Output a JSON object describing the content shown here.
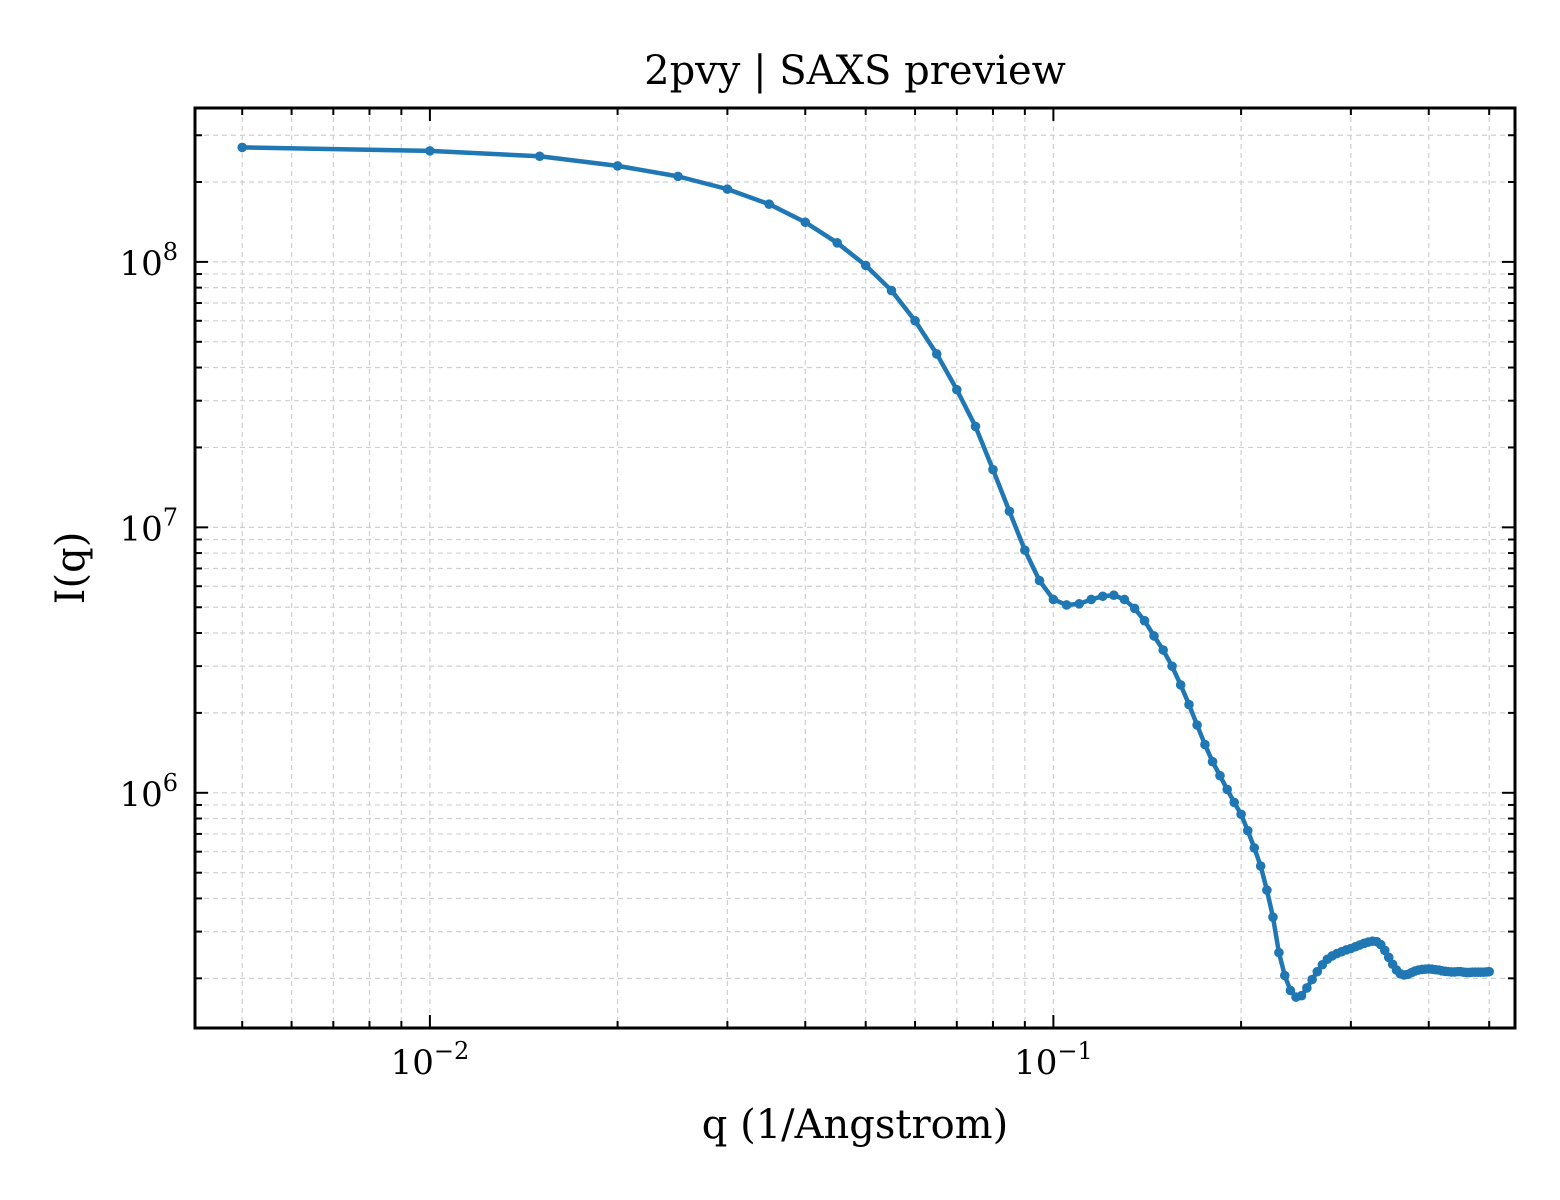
{
  "chart_data": {
    "type": "line",
    "title": "2pvy | SAXS preview",
    "xlabel": "q (1/Angstrom)",
    "ylabel": "I(q)",
    "xscale": "log",
    "yscale": "log",
    "xlim": [
      0.0042,
      0.55
    ],
    "ylim": [
      130000,
      380000000
    ],
    "grid": true,
    "grid_style": "dashed",
    "legend": "none",
    "line_color": "#1f77b4",
    "x_tick_labels": [
      {
        "value": 0.01,
        "base": "10",
        "exp": "−2"
      },
      {
        "value": 0.1,
        "base": "10",
        "exp": "−1"
      }
    ],
    "y_tick_labels": [
      {
        "value": 1000000,
        "base": "10",
        "exp": "6"
      },
      {
        "value": 10000000,
        "base": "10",
        "exp": "7"
      },
      {
        "value": 100000000,
        "base": "10",
        "exp": "8"
      }
    ],
    "series": [
      {
        "marker": "circle",
        "x": [
          0.005,
          0.01,
          0.015,
          0.02,
          0.025,
          0.03,
          0.035,
          0.04,
          0.045,
          0.05,
          0.055,
          0.06,
          0.065,
          0.07,
          0.075,
          0.08,
          0.085,
          0.09,
          0.095,
          0.1,
          0.105,
          0.11,
          0.115,
          0.12,
          0.125,
          0.13,
          0.135,
          0.14,
          0.145,
          0.15,
          0.155,
          0.16,
          0.165,
          0.17,
          0.175,
          0.18,
          0.185,
          0.19,
          0.195,
          0.2,
          0.205,
          0.21,
          0.215,
          0.22,
          0.225,
          0.23,
          0.235,
          0.24,
          0.245,
          0.25,
          0.255,
          0.26,
          0.265,
          0.27,
          0.275,
          0.28,
          0.285,
          0.29,
          0.295,
          0.3,
          0.305,
          0.31,
          0.315,
          0.32,
          0.325,
          0.33,
          0.335,
          0.34,
          0.345,
          0.35,
          0.355,
          0.36,
          0.365,
          0.37,
          0.375,
          0.38,
          0.385,
          0.39,
          0.395,
          0.4,
          0.405,
          0.41,
          0.415,
          0.42,
          0.425,
          0.43,
          0.435,
          0.44,
          0.445,
          0.45,
          0.455,
          0.46,
          0.465,
          0.47,
          0.475,
          0.48,
          0.485,
          0.49,
          0.495,
          0.5
        ],
        "y": [
          270000000,
          262000000,
          250000000,
          230000000,
          210000000,
          188000000,
          165000000,
          141000000,
          118000000,
          97000000,
          78000000,
          60000000,
          45000000,
          33000000,
          24000000,
          16500000,
          11500000,
          8200000,
          6300000,
          5350000,
          5100000,
          5150000,
          5350000,
          5500000,
          5550000,
          5350000,
          4950000,
          4450000,
          3900000,
          3450000,
          3000000,
          2550000,
          2150000,
          1800000,
          1520000,
          1310000,
          1160000,
          1030000,
          920000,
          830000,
          720000,
          620000,
          530000,
          430000,
          340000,
          250000,
          205000,
          180000,
          170000,
          172000,
          184000,
          198000,
          212000,
          225000,
          236000,
          243000,
          248000,
          252000,
          256000,
          259000,
          263000,
          267000,
          271000,
          274000,
          276000,
          275000,
          268000,
          255000,
          240000,
          226000,
          215000,
          208000,
          206000,
          207000,
          210000,
          213000,
          215000,
          216000,
          216500,
          217000,
          216500,
          215500,
          215000,
          213500,
          212500,
          212000,
          211500,
          211500,
          212000,
          212000,
          211000,
          210500,
          210500,
          211000,
          211000,
          211000,
          211000,
          211000,
          211500,
          212000
        ]
      }
    ]
  }
}
